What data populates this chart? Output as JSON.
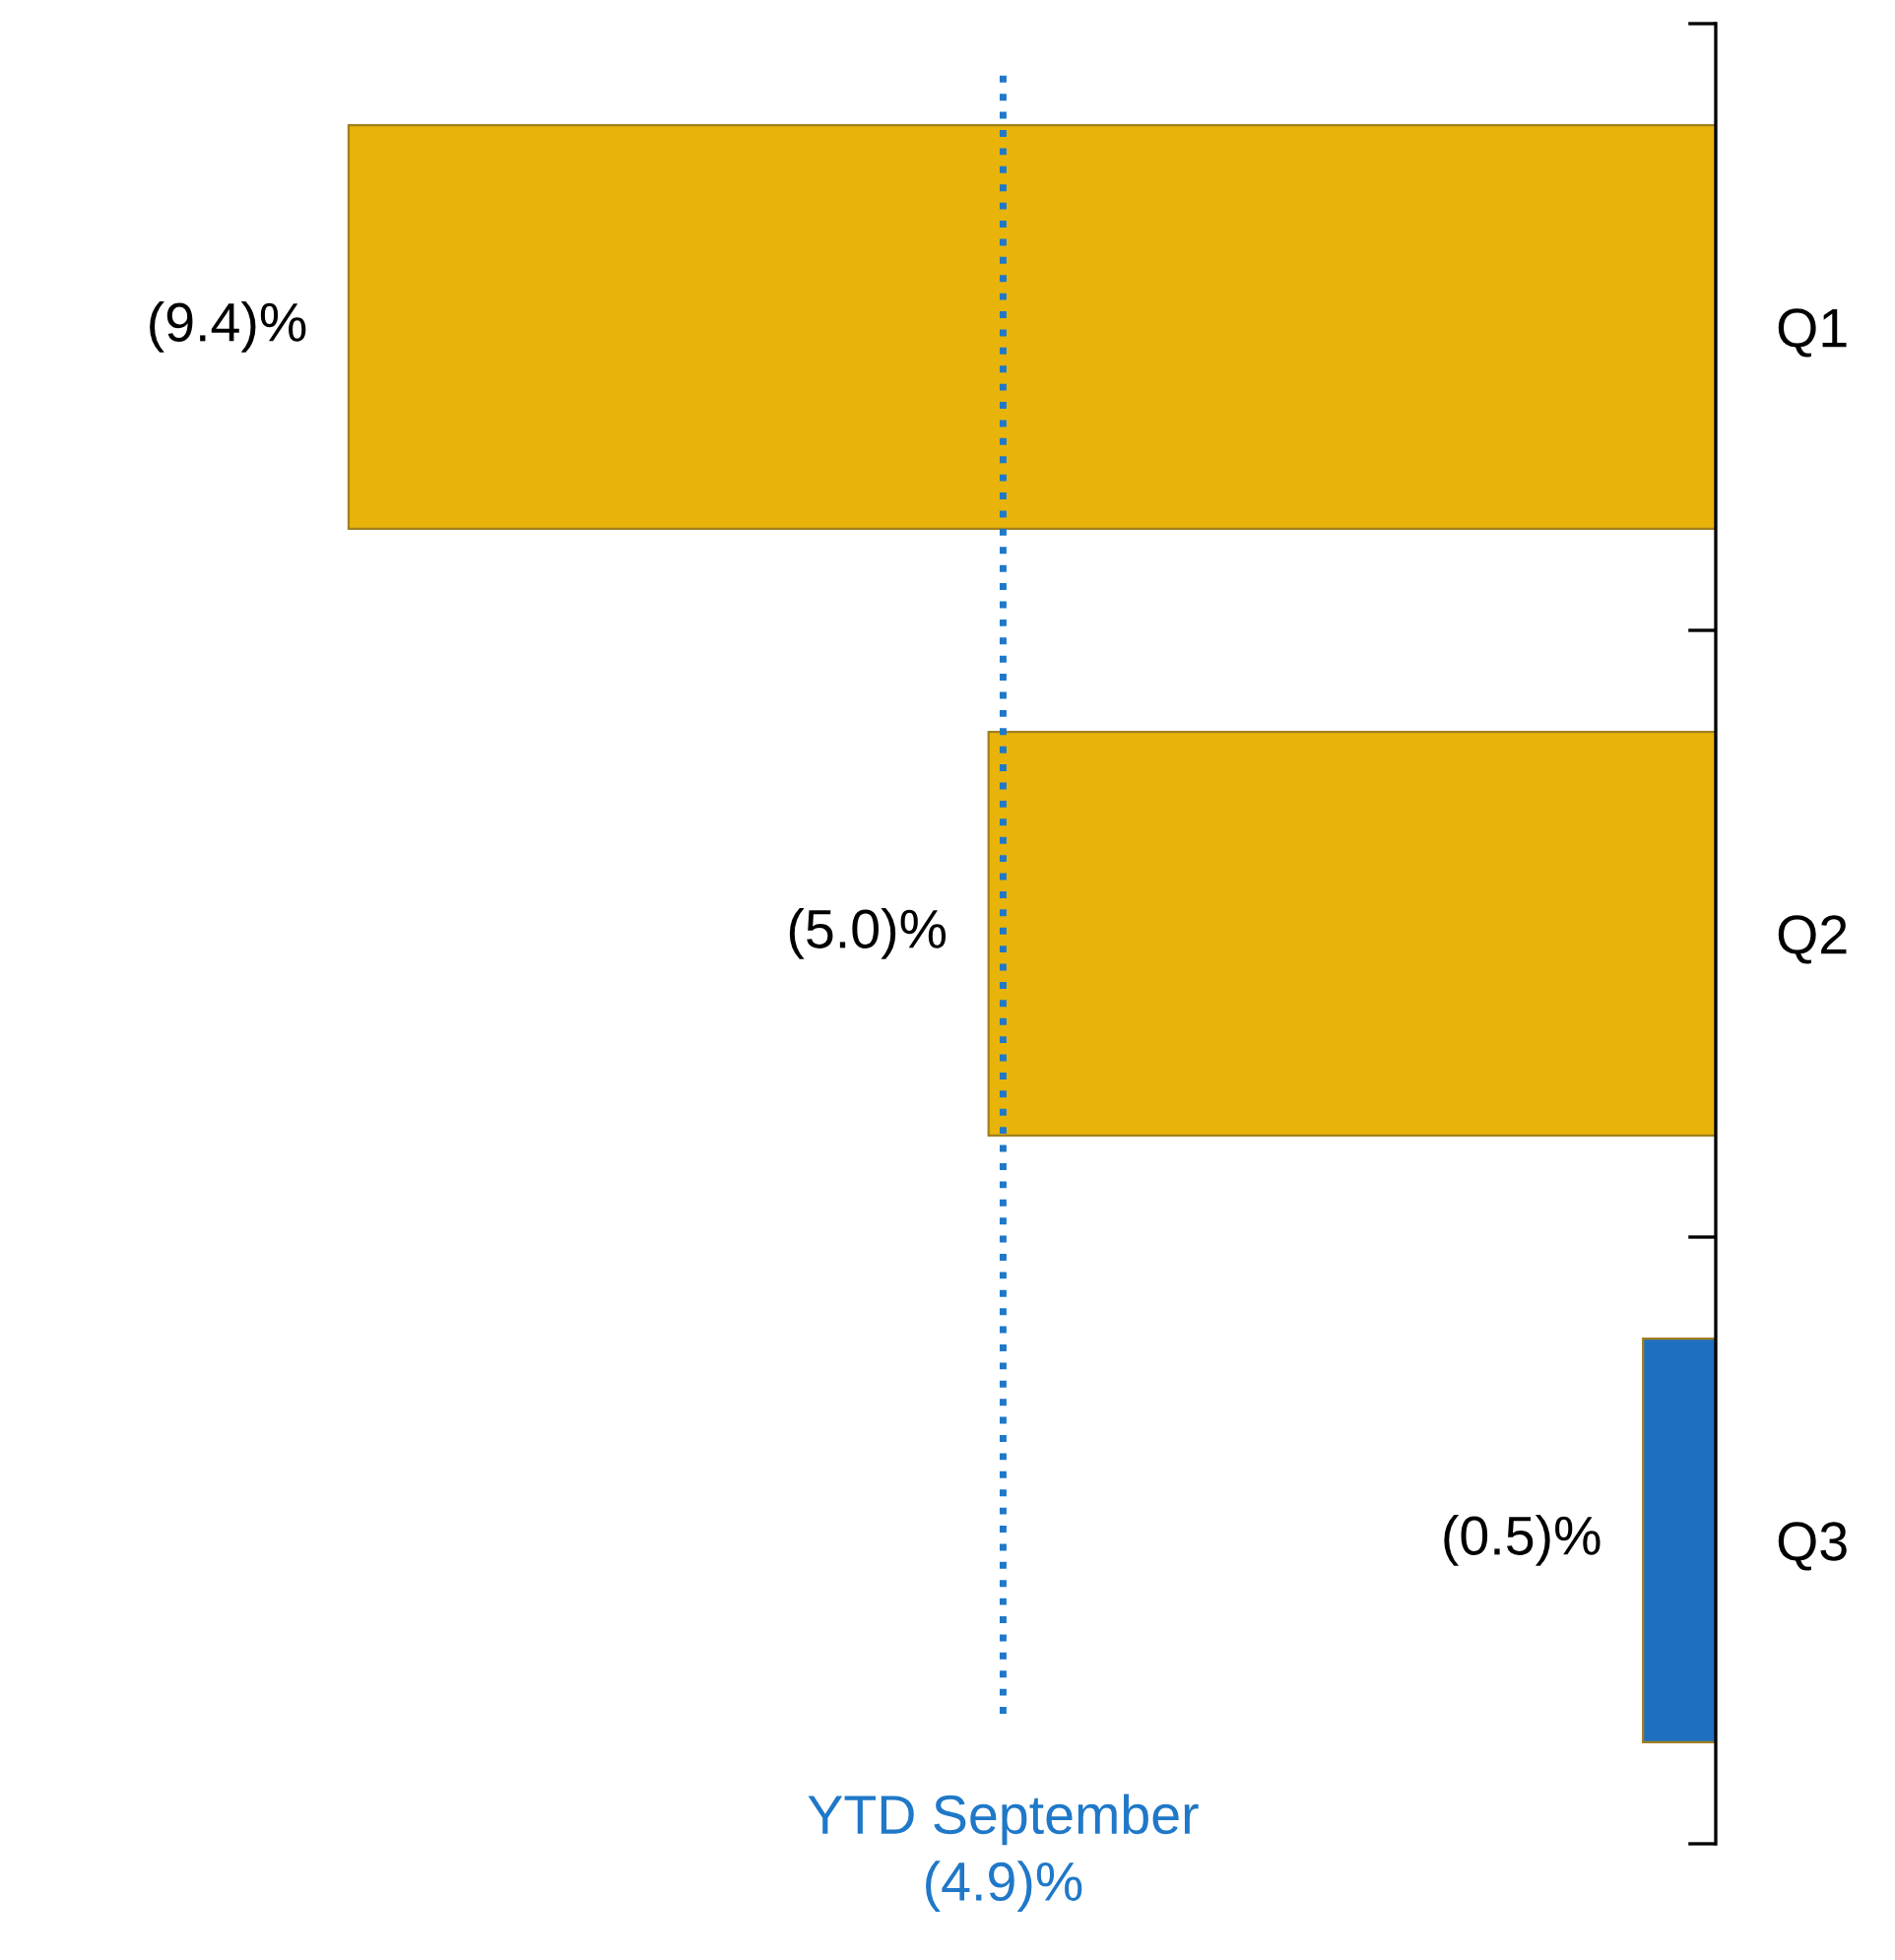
{
  "chart_data": {
    "type": "bar",
    "orientation": "horizontal",
    "categories": [
      "Q1",
      "Q2",
      "Q3"
    ],
    "values": [
      -9.4,
      -5.0,
      -0.5
    ],
    "colors": [
      "#e8b40a",
      "#e8b40a",
      "#1f6fc0"
    ],
    "value_labels": [
      "(9.4)%",
      "(5.0)%",
      "(0.5)%"
    ],
    "ref_lines": [
      {
        "axis": "x",
        "value": -4.9,
        "label": "YTD September\n(4.9)%",
        "color": "#1f78c8",
        "line_style": "dotted"
      }
    ],
    "tick_labels": "y"
  }
}
